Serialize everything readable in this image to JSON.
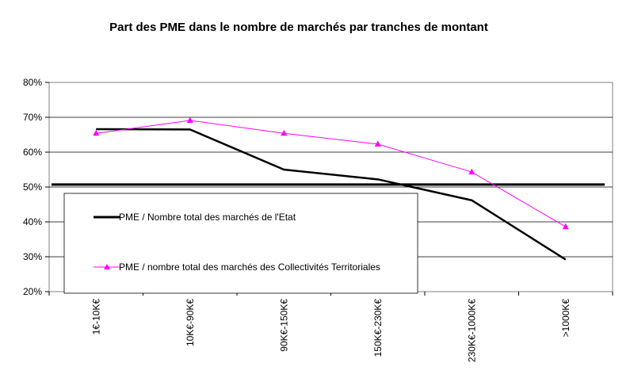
{
  "chart_data": {
    "type": "line",
    "title": "Part des PME dans le nombre de marchés par tranches de montant",
    "categories": [
      "1€-10K€",
      "10K€-90K€",
      "90K€-150K€",
      "150K€-230K€",
      "230K€-1000K€",
      ">1000K€"
    ],
    "y_ticks": [
      "80%",
      "70%",
      "60%",
      "50%",
      "40%",
      "30%",
      "20%"
    ],
    "ylim": [
      20,
      80
    ],
    "grid": true,
    "reference_line": 50.7,
    "legend_position": "lower-left inside plot",
    "series": [
      {
        "name": "PME /  Nombre total des marchés de l'Etat",
        "values": [
          66.6,
          66.5,
          55.0,
          52.2,
          46.2,
          29.2
        ],
        "color": "#000000",
        "marker": "none"
      },
      {
        "name": "PME / nombre total des marchés des Collectivités Territoriales",
        "values": [
          65.4,
          69.1,
          65.4,
          62.3,
          54.3,
          38.6
        ],
        "color": "#ff00ff",
        "marker": "triangle"
      }
    ]
  }
}
